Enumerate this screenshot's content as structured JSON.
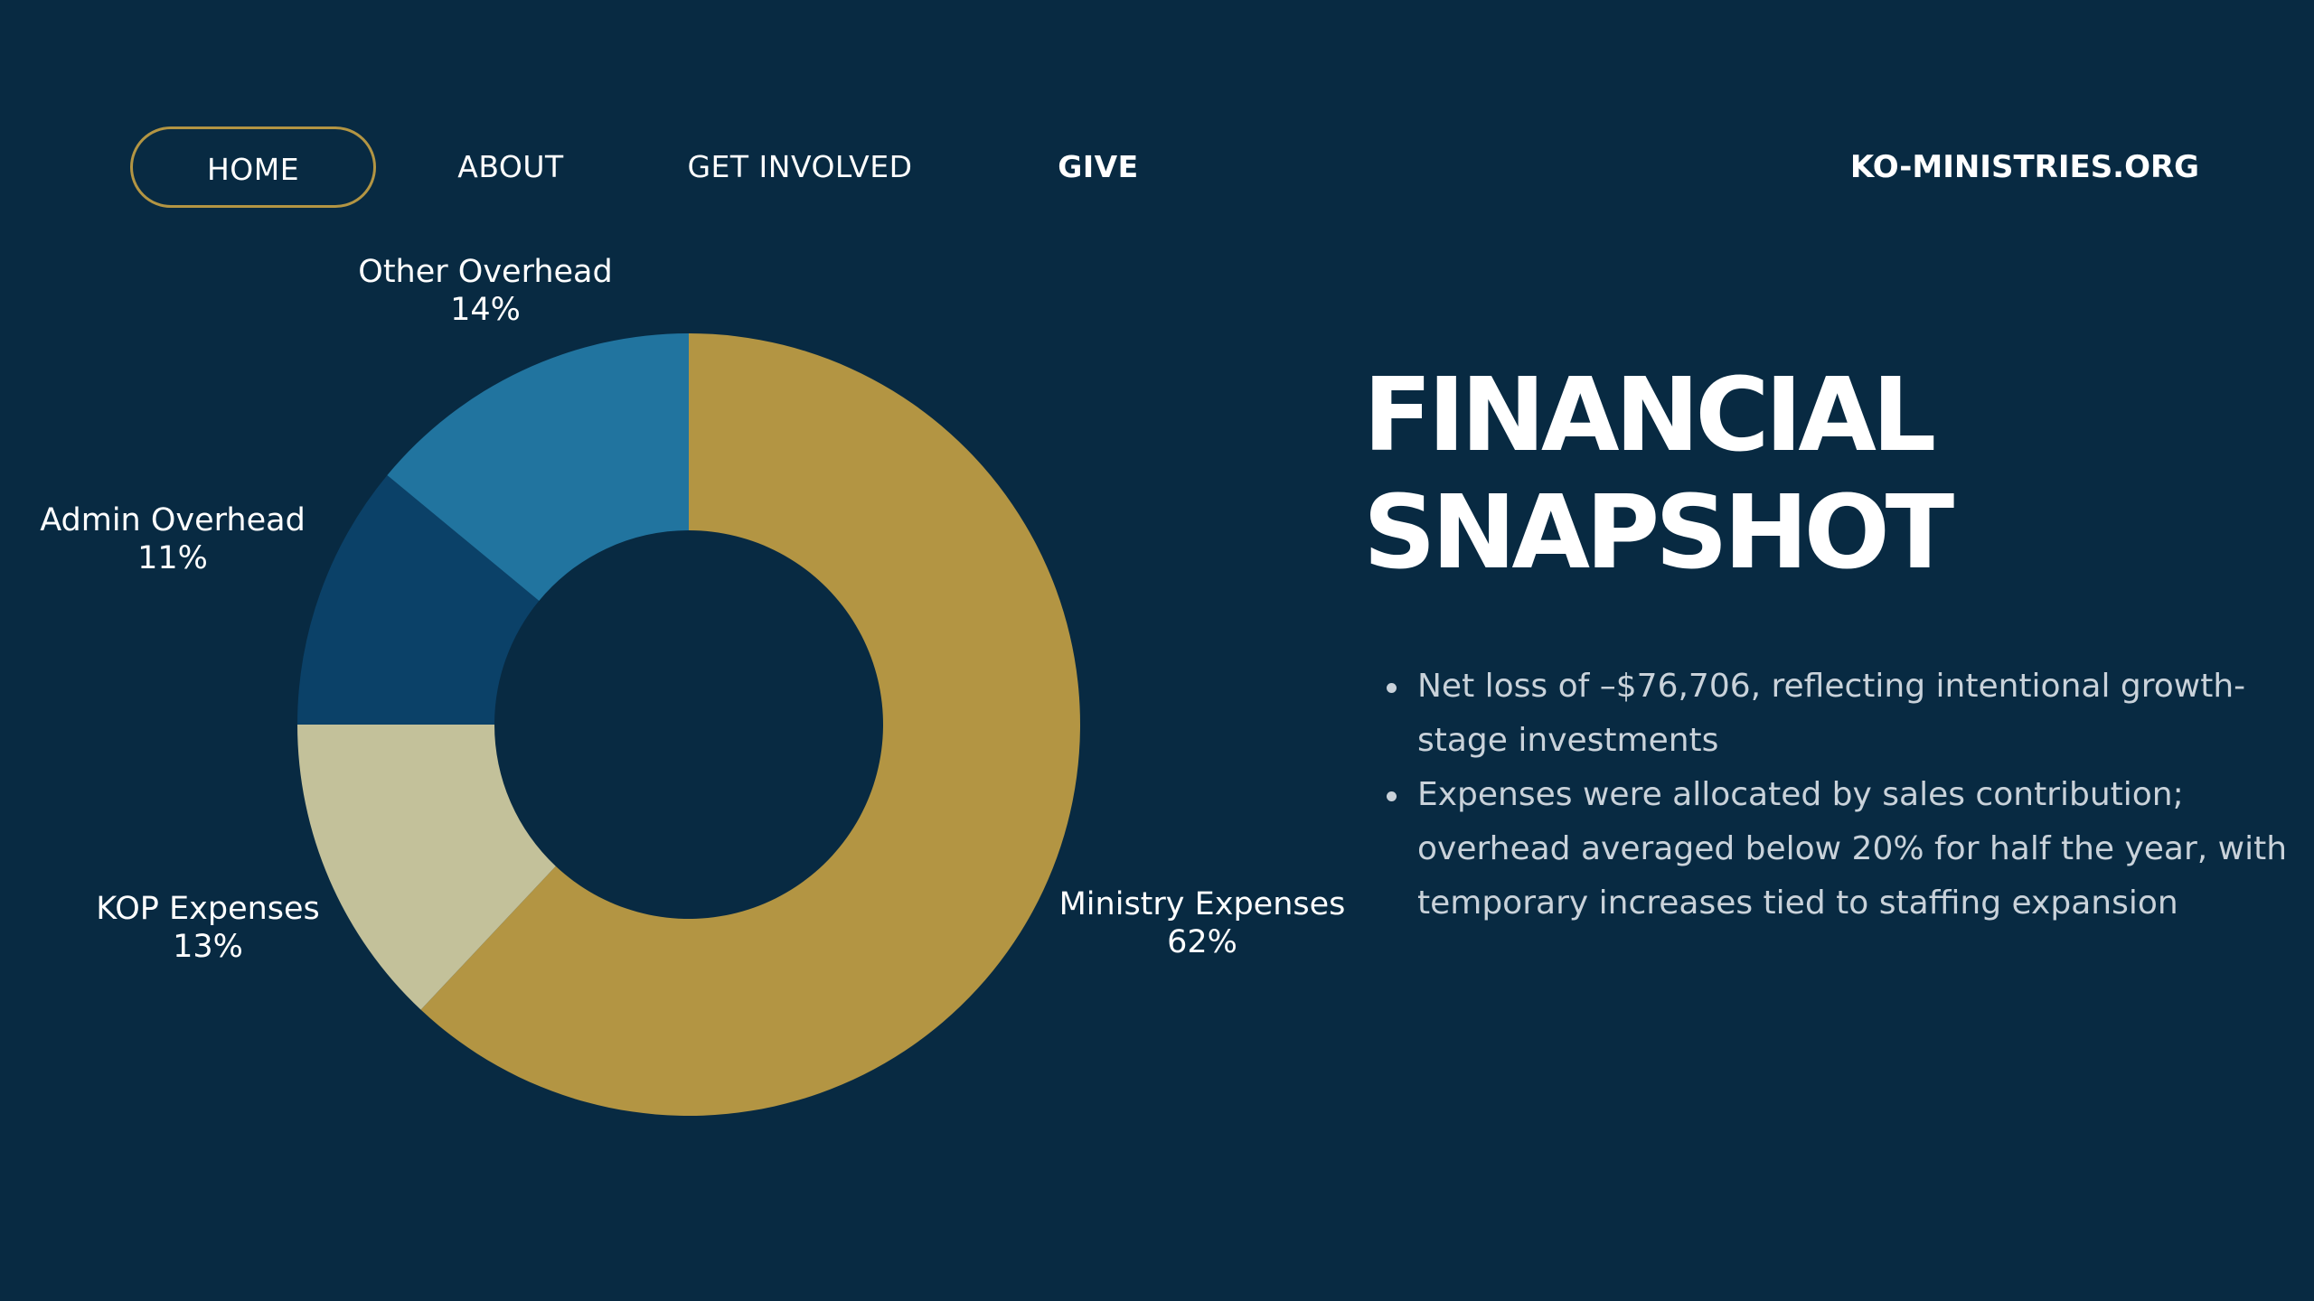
{
  "nav": {
    "items": [
      {
        "label": "HOME",
        "active": true
      },
      {
        "label": "ABOUT"
      },
      {
        "label": "GET INVOLVED"
      },
      {
        "label": "GIVE"
      }
    ],
    "site": "KO-MINISTRIES.ORG"
  },
  "colors": {
    "background": "#082a42",
    "accent": "#b39543"
  },
  "heading": {
    "line1": "FINANCIAL",
    "line2": "SNAPSHOT"
  },
  "bullets": [
    "Net loss of –$76,706, reflecting intentional growth-stage investments",
    "Expenses were allocated by sales contribution; overhead averaged below 20% for half the year, with temporary increases tied to staffing expansion"
  ],
  "chart_data": {
    "type": "pie",
    "style": "donut",
    "title": "",
    "legend": "none",
    "direction": "clockwise-from-top",
    "slices": [
      {
        "label": "Ministry Expenses",
        "value": 62,
        "value_label": "62%",
        "color": "#b39543"
      },
      {
        "label": "KOP Expenses",
        "value": 13,
        "value_label": "13%",
        "color": "#c3c19a"
      },
      {
        "label": "Admin Overhead",
        "value": 11,
        "value_label": "11%",
        "color": "#0b4168"
      },
      {
        "label": "Other Overhead",
        "value": 14,
        "value_label": "14%",
        "color": "#21749f"
      }
    ]
  }
}
